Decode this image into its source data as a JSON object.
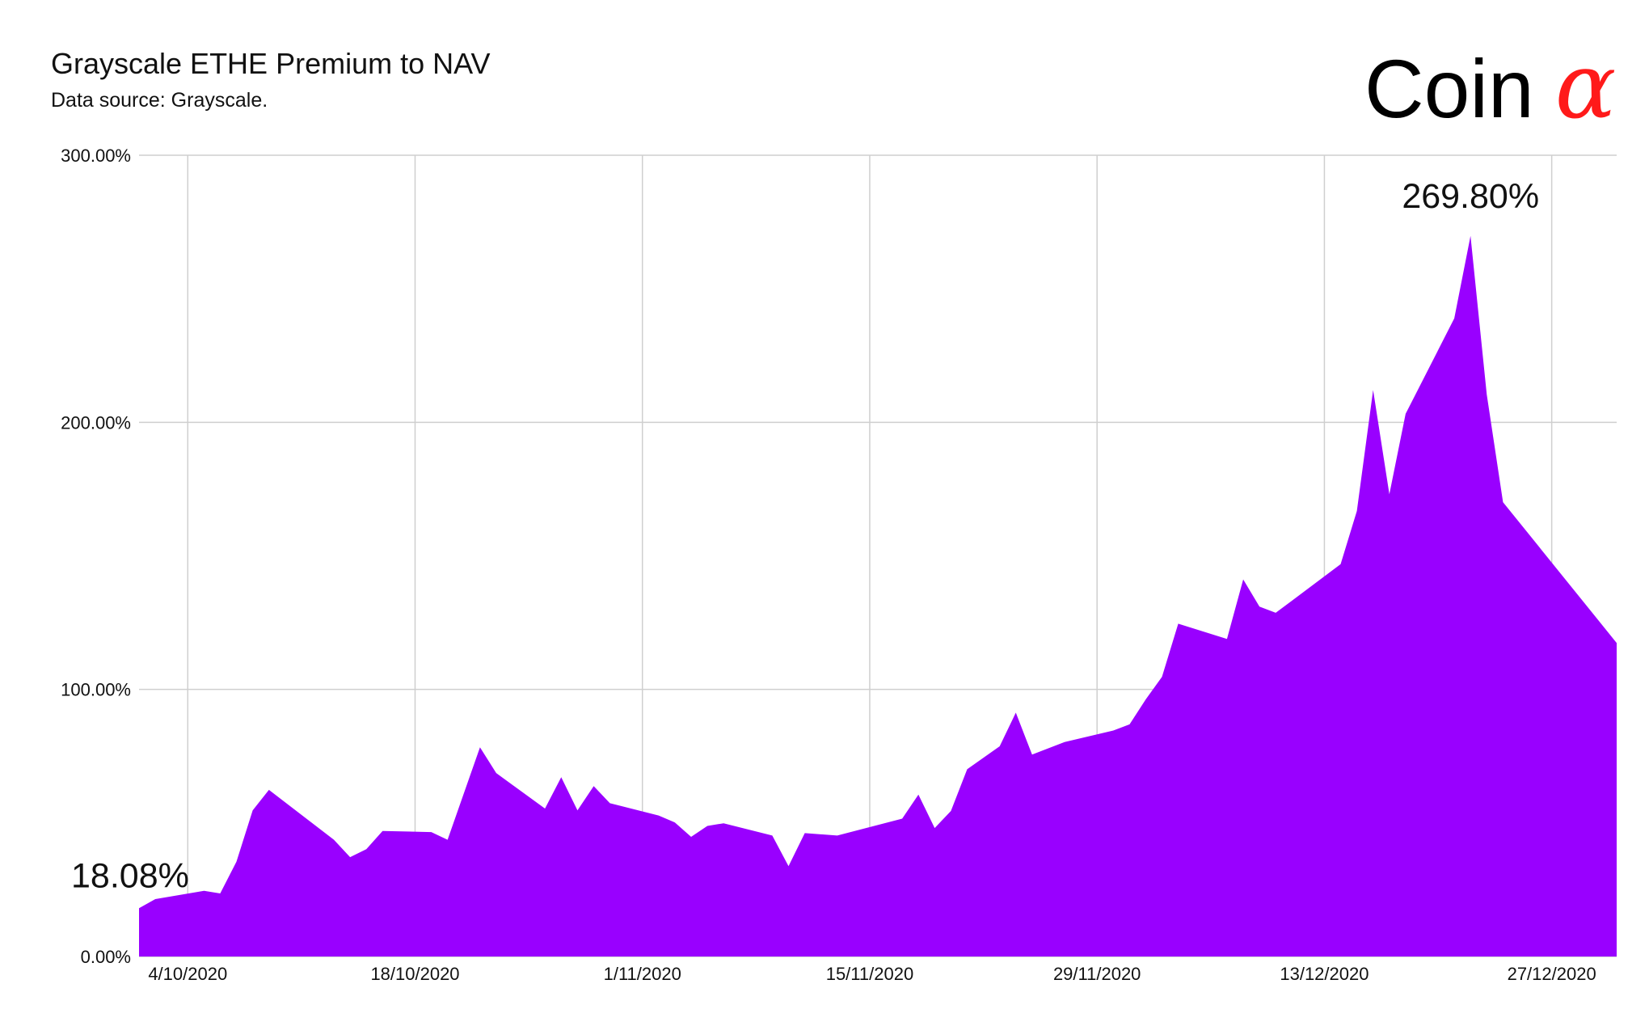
{
  "header": {
    "title": "Grayscale ETHE Premium to NAV",
    "subtitle": "Data source: Grayscale.",
    "logo_text": "Coin",
    "logo_mark": "α",
    "logo_mark_color": "#ff1a1a"
  },
  "chart_data": {
    "type": "area",
    "title": "Grayscale ETHE Premium to NAV",
    "xlabel": "",
    "ylabel": "",
    "fill_color": "#9900ff",
    "grid": true,
    "ylim": [
      0,
      300
    ],
    "xlim": [
      "2020-10-01",
      "2020-12-31"
    ],
    "y_ticks": [
      {
        "value": 0,
        "label": "0.00%"
      },
      {
        "value": 100,
        "label": "100.00%"
      },
      {
        "value": 200,
        "label": "200.00%"
      },
      {
        "value": 300,
        "label": "300.00%"
      }
    ],
    "x_ticks": [
      {
        "date": "2020-10-04",
        "label": "4/10/2020"
      },
      {
        "date": "2020-10-18",
        "label": "18/10/2020"
      },
      {
        "date": "2020-11-01",
        "label": "1/11/2020"
      },
      {
        "date": "2020-11-15",
        "label": "15/11/2020"
      },
      {
        "date": "2020-11-29",
        "label": "29/11/2020"
      },
      {
        "date": "2020-12-13",
        "label": "13/12/2020"
      },
      {
        "date": "2020-12-27",
        "label": "27/12/2020"
      }
    ],
    "series": [
      {
        "x": [
          "2020-10-01",
          "2020-10-02",
          "2020-10-05",
          "2020-10-06",
          "2020-10-07",
          "2020-10-08",
          "2020-10-09",
          "2020-10-13",
          "2020-10-14",
          "2020-10-15",
          "2020-10-16",
          "2020-10-19",
          "2020-10-20",
          "2020-10-22",
          "2020-10-23",
          "2020-10-26",
          "2020-10-27",
          "2020-10-28",
          "2020-10-29",
          "2020-10-30",
          "2020-11-02",
          "2020-11-03",
          "2020-11-04",
          "2020-11-05",
          "2020-11-06",
          "2020-11-09",
          "2020-11-10",
          "2020-11-11",
          "2020-11-13",
          "2020-11-17",
          "2020-11-18",
          "2020-11-19",
          "2020-11-20",
          "2020-11-21",
          "2020-11-23",
          "2020-11-24",
          "2020-11-25",
          "2020-11-27",
          "2020-11-30",
          "2020-12-01",
          "2020-12-02",
          "2020-12-03",
          "2020-12-04",
          "2020-12-07",
          "2020-12-08",
          "2020-12-09",
          "2020-12-10",
          "2020-12-11",
          "2020-12-14",
          "2020-12-15",
          "2020-12-16",
          "2020-12-17",
          "2020-12-18",
          "2020-12-21",
          "2020-12-22",
          "2020-12-23",
          "2020-12-24",
          "2020-12-31"
        ],
        "values": [
          18.08,
          21.5,
          24.6,
          23.6,
          35.5,
          54.7,
          62.4,
          43.7,
          37.2,
          40.2,
          47.0,
          46.6,
          43.7,
          78.3,
          68.7,
          55.4,
          67.1,
          54.7,
          63.8,
          57.4,
          52.8,
          50.2,
          44.8,
          48.9,
          49.9,
          45.3,
          33.8,
          46.2,
          45.3,
          51.6,
          60.6,
          48.1,
          54.5,
          70.1,
          78.7,
          91.3,
          75.6,
          80.3,
          84.6,
          86.9,
          96.3,
          104.7,
          124.6,
          118.9,
          141.2,
          131.0,
          128.7,
          133.2,
          146.9,
          166.8,
          212.1,
          173.1,
          203.2,
          238.9,
          269.8,
          210.4,
          170.1,
          117.4
        ]
      }
    ],
    "annotations": [
      {
        "text": "18.08%",
        "x": "2020-10-01",
        "y": 18.08
      },
      {
        "text": "269.80%",
        "x": "2020-12-22",
        "y": 269.8
      }
    ]
  }
}
